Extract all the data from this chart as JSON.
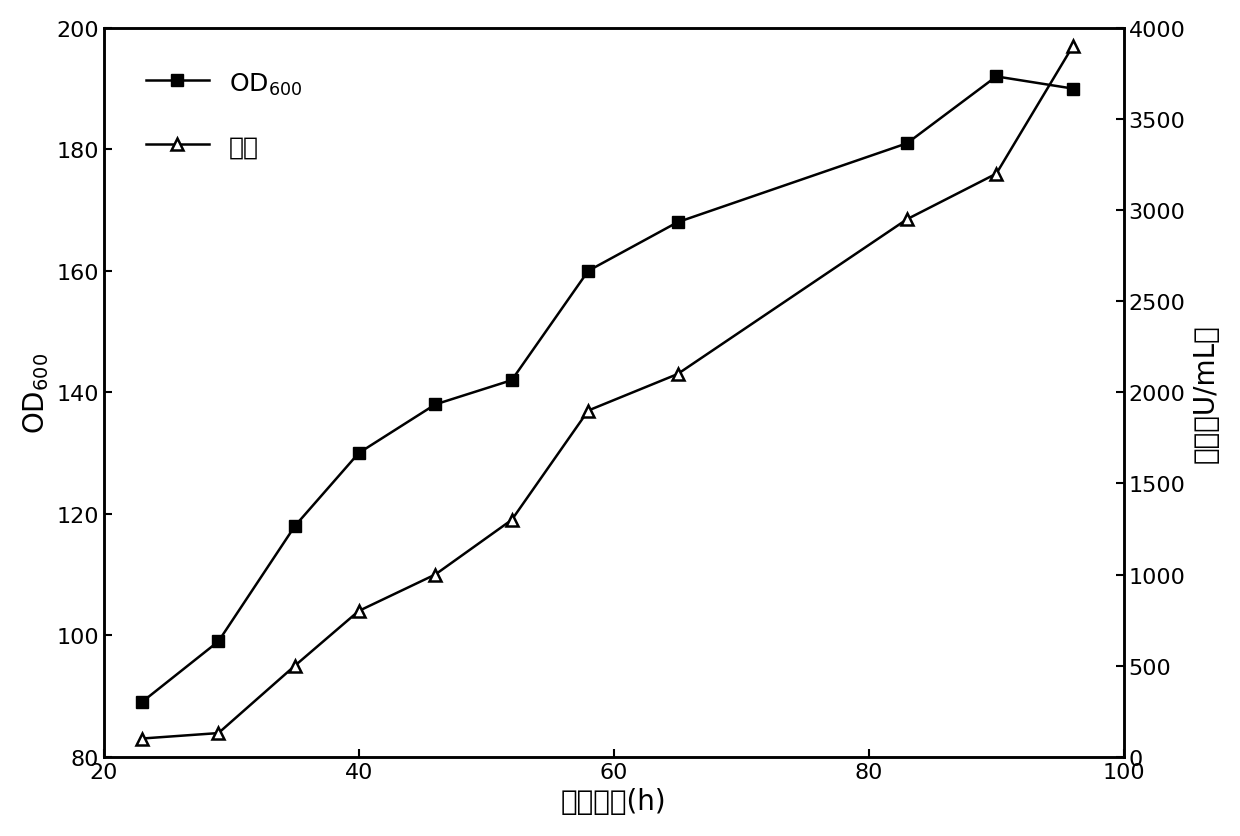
{
  "od600_x": [
    23,
    29,
    35,
    40,
    46,
    52,
    58,
    65,
    83,
    90,
    96
  ],
  "od600_y": [
    89,
    99,
    118,
    130,
    138,
    142,
    160,
    168,
    181,
    192,
    190
  ],
  "enzyme_x": [
    23,
    29,
    35,
    40,
    46,
    52,
    58,
    65,
    83,
    90,
    96
  ],
  "enzyme_y": [
    100,
    130,
    500,
    800,
    1000,
    1300,
    1900,
    2100,
    2950,
    3200,
    3900
  ],
  "left_ylim": [
    80,
    200
  ],
  "right_ylim": [
    0,
    4000
  ],
  "xlim": [
    20,
    100
  ],
  "left_yticks": [
    80,
    100,
    120,
    140,
    160,
    180,
    200
  ],
  "right_yticks": [
    0,
    500,
    1000,
    1500,
    2000,
    2500,
    3000,
    3500,
    4000
  ],
  "xticks": [
    20,
    40,
    60,
    80,
    100
  ],
  "xlabel": "发酵时间(h)",
  "left_ylabel": "OD₆₀₀",
  "right_ylabel": "酶活（U/mL）",
  "line_color": "black",
  "marker_od600": "s",
  "marker_enzyme": "^",
  "markersize": 9,
  "linewidth": 1.8,
  "background_color": "white",
  "font_size": 18,
  "tick_font_size": 16,
  "label_font_size": 20
}
